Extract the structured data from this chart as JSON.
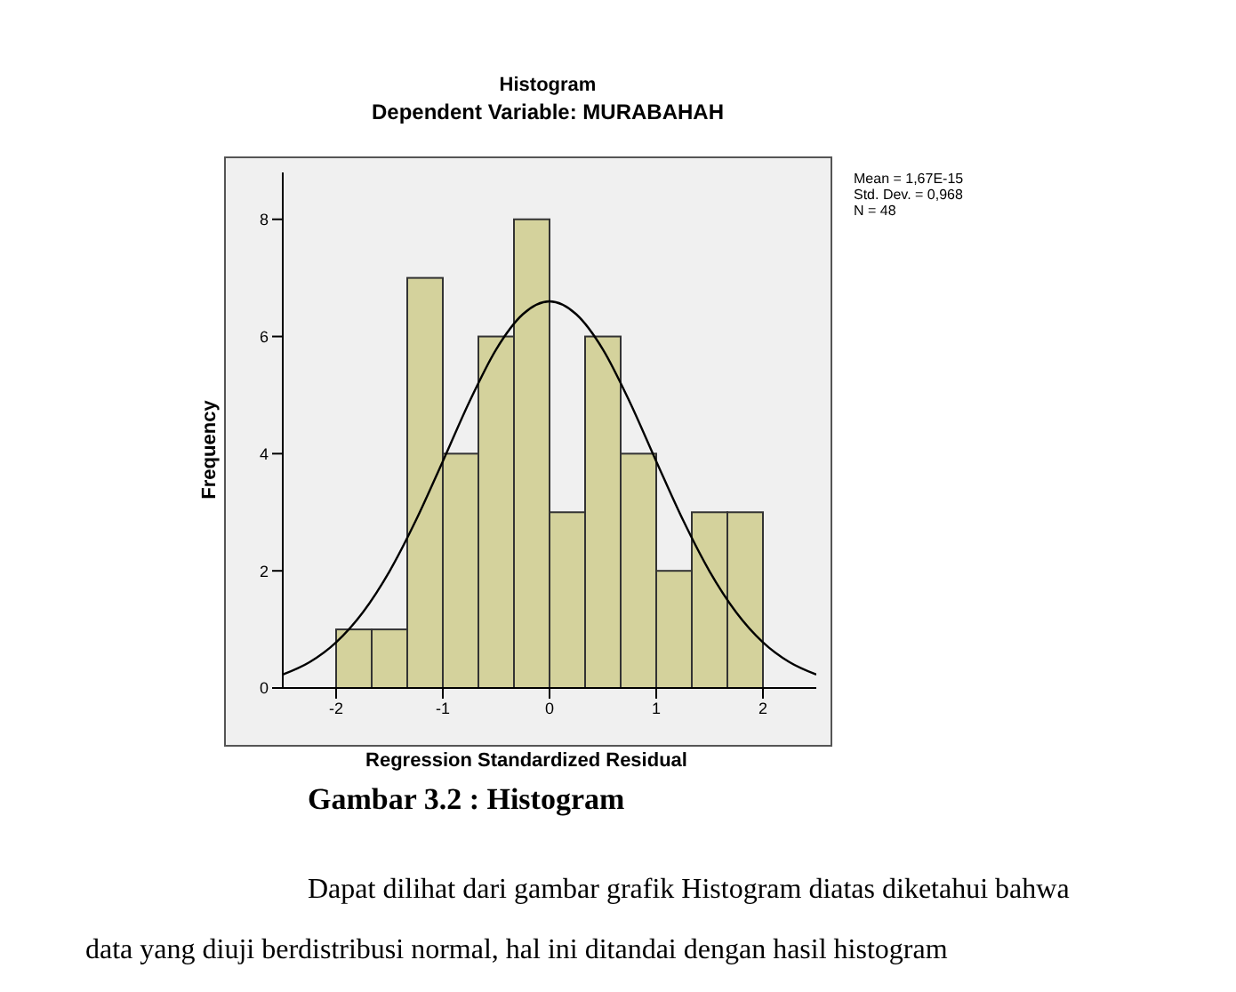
{
  "chart_data": {
    "type": "histogram",
    "title": "Histogram",
    "subtitle": "Dependent Variable: MURABAHAH",
    "xlabel": "Regression Standardized Residual",
    "ylabel": "Frequency",
    "bins": [
      -2,
      -1.6667,
      -1.3333,
      -1,
      -0.6667,
      -0.3333,
      0,
      0.3333,
      0.6667,
      1,
      1.3333,
      1.6667,
      2
    ],
    "values": [
      1,
      1,
      7,
      4,
      6,
      8,
      3,
      6,
      4,
      2,
      3,
      3
    ],
    "color": "#d4d29c",
    "series": [
      {
        "type": "line",
        "color": "#000000",
        "x": [
          -2.5,
          -2.25,
          -2,
          -1.75,
          -1.5,
          -1.25,
          -1,
          -0.75,
          -0.5,
          -0.25,
          0,
          0.25,
          0.5,
          0.75,
          1,
          1.25,
          1.5,
          1.75,
          2,
          2.25,
          2.5
        ],
        "values": [
          0.23,
          0.44,
          0.78,
          1.29,
          1.99,
          2.87,
          3.87,
          4.89,
          5.78,
          6.38,
          6.6,
          6.38,
          5.78,
          4.89,
          3.87,
          2.87,
          1.99,
          1.29,
          0.78,
          0.44,
          0.23
        ]
      }
    ],
    "xlim": [
      -2.5,
      2.5
    ],
    "xticks": [
      -2,
      -1,
      0,
      1,
      2
    ],
    "ylim": [
      0,
      8.8
    ],
    "yticks": [
      0,
      2,
      4,
      6,
      8
    ],
    "grid": false,
    "marker": "none",
    "annotations": [
      "Mean = 1,67E-15",
      "Std. Dev. = 0,968",
      "N = 48",
      "Gambar 3.2 : Histogram",
      "Dapat dilihat dari gambar grafik Histogram diatas diketahui bahwa",
      "data yang diuji berdistribusi normal, hal ini ditandai dengan hasil histogram"
    ]
  }
}
